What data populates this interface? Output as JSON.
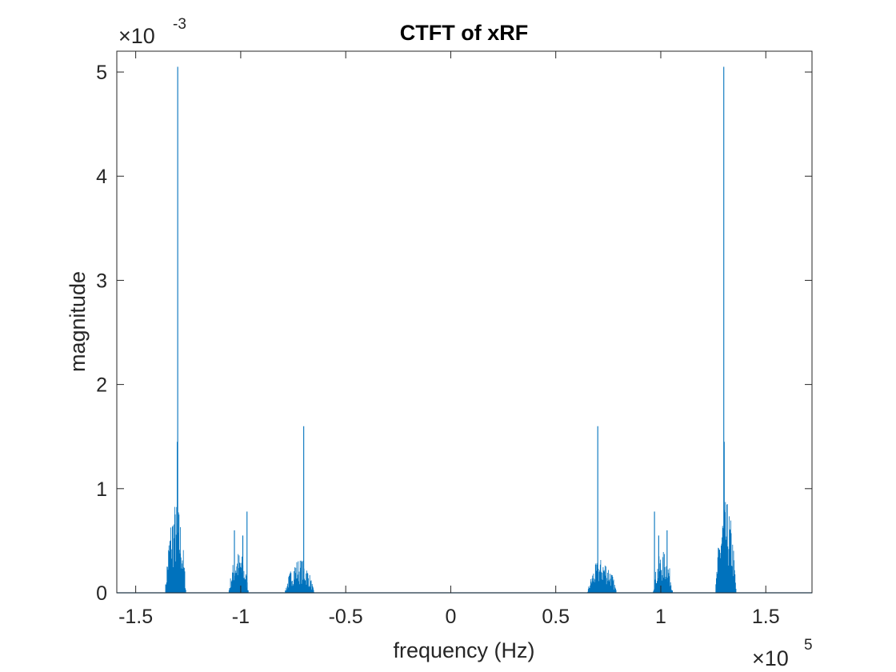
{
  "chart_data": {
    "type": "line",
    "title": "CTFT of xRF",
    "xlabel": "frequency (Hz)",
    "ylabel": "magnitude",
    "x_multiplier": "×10",
    "x_exponent": "5",
    "y_multiplier": "×10",
    "y_exponent": "-3",
    "xlim": [
      -1.59,
      1.72
    ],
    "ylim": [
      0,
      5.2
    ],
    "x_ticks": [
      -1.5,
      -1,
      -0.5,
      0,
      0.5,
      1,
      1.5
    ],
    "x_tick_labels": [
      "-1.5",
      "-1",
      "-0.5",
      "0",
      "0.5",
      "1",
      "1.5"
    ],
    "y_ticks": [
      0,
      1,
      2,
      3,
      4,
      5
    ],
    "y_tick_labels": [
      "0",
      "1",
      "2",
      "3",
      "4",
      "5"
    ],
    "grid": false,
    "line_color": "#0072BD",
    "series": [
      {
        "bands": [
          {
            "center": -1.31,
            "half_width": 0.05,
            "envelope": 0.88
          },
          {
            "center": -1.01,
            "half_width": 0.048,
            "envelope": 0.4
          },
          {
            "center": -0.72,
            "half_width": 0.07,
            "envelope": 0.33
          },
          {
            "center": 0.72,
            "half_width": 0.07,
            "envelope": 0.33
          },
          {
            "center": 1.01,
            "half_width": 0.048,
            "envelope": 0.4
          },
          {
            "center": 1.31,
            "half_width": 0.05,
            "envelope": 0.88
          }
        ],
        "peaks": [
          {
            "x": -1.3,
            "y": 5.05
          },
          {
            "x": -1.302,
            "y": 1.45
          },
          {
            "x": -0.97,
            "y": 0.78
          },
          {
            "x": -1.03,
            "y": 0.6
          },
          {
            "x": -0.99,
            "y": 0.55
          },
          {
            "x": -0.7,
            "y": 1.6
          },
          {
            "x": 0.7,
            "y": 1.6
          },
          {
            "x": 0.97,
            "y": 0.78
          },
          {
            "x": 1.03,
            "y": 0.6
          },
          {
            "x": 0.99,
            "y": 0.55
          },
          {
            "x": 1.302,
            "y": 1.45
          },
          {
            "x": 1.3,
            "y": 5.05
          }
        ]
      }
    ]
  }
}
